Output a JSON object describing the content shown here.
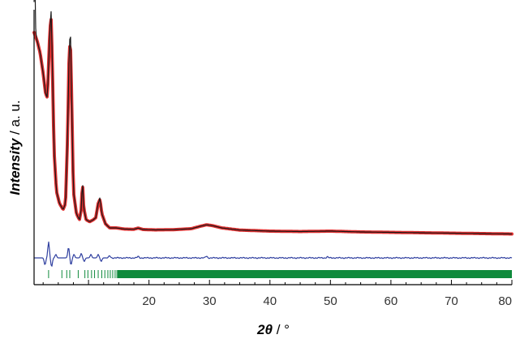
{
  "chart_data": {
    "type": "line",
    "xlabel": {
      "symbol": "2θ",
      "unit": " / °"
    },
    "ylabel": {
      "quantity": "Intensity",
      "unit": " / a. u."
    },
    "xlim": [
      1,
      80
    ],
    "xticks": [
      "20",
      "30",
      "40",
      "50",
      "60",
      "70",
      "80"
    ],
    "yticks_shown": false,
    "legend": "none",
    "colors": {
      "observed": "#1a1a1a",
      "calculated": "#e03030",
      "difference": "#3040a0",
      "reflections": "#0f8a3c"
    },
    "profile_points": [
      [
        1.0,
        100
      ],
      [
        1.5,
        96
      ],
      [
        2.0,
        90
      ],
      [
        2.5,
        80
      ],
      [
        2.9,
        70
      ],
      [
        3.2,
        68
      ],
      [
        3.6,
        100
      ],
      [
        3.8,
        108
      ],
      [
        4.0,
        88
      ],
      [
        4.3,
        42
      ],
      [
        4.7,
        22
      ],
      [
        5.2,
        16
      ],
      [
        5.8,
        13
      ],
      [
        6.2,
        16
      ],
      [
        6.55,
        50
      ],
      [
        6.8,
        90
      ],
      [
        7.0,
        96
      ],
      [
        7.2,
        70
      ],
      [
        7.5,
        22
      ],
      [
        8.0,
        11
      ],
      [
        8.5,
        8
      ],
      [
        8.8,
        13
      ],
      [
        9.0,
        27
      ],
      [
        9.2,
        14
      ],
      [
        9.6,
        8
      ],
      [
        10.2,
        7
      ],
      [
        10.8,
        8
      ],
      [
        11.2,
        9
      ],
      [
        11.6,
        16
      ],
      [
        11.9,
        18
      ],
      [
        12.2,
        11
      ],
      [
        12.8,
        6
      ],
      [
        13.5,
        4
      ],
      [
        14.5,
        4
      ],
      [
        16.0,
        3.4
      ],
      [
        17.5,
        3.3
      ],
      [
        18.2,
        3.9
      ],
      [
        19.0,
        3.2
      ],
      [
        21.0,
        3.0
      ],
      [
        24.0,
        3.1
      ],
      [
        27.0,
        3.6
      ],
      [
        28.5,
        4.8
      ],
      [
        29.5,
        5.5
      ],
      [
        30.5,
        5.1
      ],
      [
        32.0,
        4.0
      ],
      [
        35.0,
        2.9
      ],
      [
        40.0,
        2.4
      ],
      [
        45.0,
        2.2
      ],
      [
        50.0,
        2.4
      ],
      [
        55.0,
        2.0
      ],
      [
        60.0,
        1.8
      ],
      [
        65.0,
        1.6
      ],
      [
        70.0,
        1.4
      ],
      [
        75.0,
        1.2
      ],
      [
        80.0,
        1.0
      ]
    ],
    "observed_extra_height": [
      [
        1.1,
        30
      ],
      [
        3.8,
        4
      ],
      [
        7.0,
        7
      ],
      [
        9.0,
        1
      ],
      [
        11.9,
        1
      ]
    ],
    "difference_spikes": [
      [
        2.8,
        -4
      ],
      [
        3.4,
        9
      ],
      [
        3.9,
        -5
      ],
      [
        4.6,
        2
      ],
      [
        6.7,
        6
      ],
      [
        7.1,
        -4
      ],
      [
        7.6,
        2
      ],
      [
        8.8,
        2.5
      ],
      [
        9.3,
        -2
      ],
      [
        10.4,
        2
      ],
      [
        11.6,
        2
      ],
      [
        12.1,
        -2
      ],
      [
        13.5,
        1.2
      ],
      [
        18.2,
        0.8
      ],
      [
        29.5,
        1
      ],
      [
        49.5,
        0.6
      ]
    ],
    "reflection_positions": [
      3.4,
      5.6,
      6.4,
      6.9,
      8.3,
      9.4,
      9.9,
      10.5,
      11.0,
      11.6,
      12.2,
      12.7,
      13.2,
      13.6,
      14.0,
      14.4,
      14.7,
      15.0,
      15.4,
      15.8,
      16.1,
      16.5,
      16.8
    ]
  }
}
